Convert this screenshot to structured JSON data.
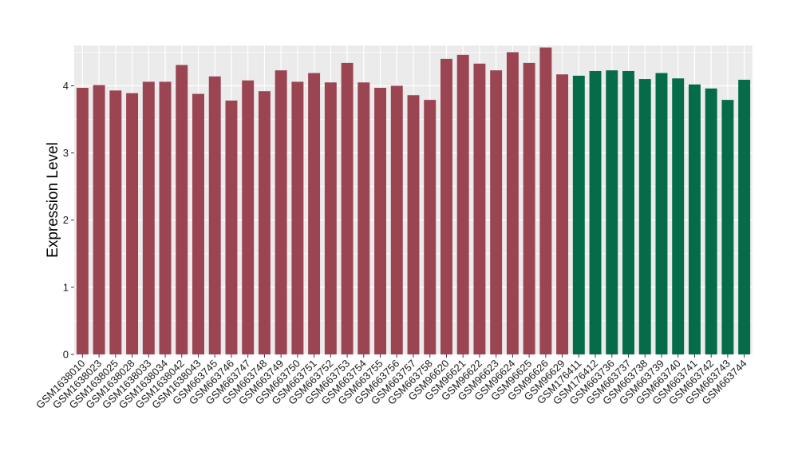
{
  "chart_data": {
    "type": "bar",
    "title": "",
    "xlabel": "",
    "ylabel": "Expression Level",
    "ylim": [
      0,
      4.6
    ],
    "yticks": [
      0,
      1,
      2,
      3,
      4
    ],
    "grid": true,
    "legend": "none",
    "colors": {
      "group1": "#9b4452",
      "group2": "#056b48",
      "panel_bg": "#ebebeb",
      "grid": "#ffffff"
    },
    "categories": [
      "GSM1638010",
      "GSM1638023",
      "GSM1638025",
      "GSM1638028",
      "GSM1638033",
      "GSM1638034",
      "GSM1638042",
      "GSM1638043",
      "GSM663745",
      "GSM663746",
      "GSM663747",
      "GSM663748",
      "GSM663749",
      "GSM663750",
      "GSM663751",
      "GSM663752",
      "GSM663753",
      "GSM663754",
      "GSM663755",
      "GSM663756",
      "GSM663757",
      "GSM663758",
      "GSM96620",
      "GSM96621",
      "GSM96622",
      "GSM96623",
      "GSM96624",
      "GSM96625",
      "GSM96626",
      "GSM96629",
      "GSM176411",
      "GSM176412",
      "GSM663736",
      "GSM663737",
      "GSM663738",
      "GSM663739",
      "GSM663740",
      "GSM663741",
      "GSM663742",
      "GSM663743",
      "GSM663744"
    ],
    "values": [
      3.97,
      4.01,
      3.93,
      3.89,
      4.06,
      4.06,
      4.31,
      3.88,
      4.14,
      3.78,
      4.08,
      3.92,
      4.23,
      4.06,
      4.19,
      4.05,
      4.34,
      4.05,
      3.97,
      4.0,
      3.86,
      3.79,
      4.4,
      4.46,
      4.33,
      4.23,
      4.5,
      4.34,
      4.57,
      4.17,
      4.15,
      4.22,
      4.23,
      4.22,
      4.1,
      4.19,
      4.11,
      4.02,
      3.96,
      3.79,
      4.09
    ],
    "groups": [
      1,
      1,
      1,
      1,
      1,
      1,
      1,
      1,
      1,
      1,
      1,
      1,
      1,
      1,
      1,
      1,
      1,
      1,
      1,
      1,
      1,
      1,
      1,
      1,
      1,
      1,
      1,
      1,
      1,
      1,
      2,
      2,
      2,
      2,
      2,
      2,
      2,
      2,
      2,
      2,
      2
    ]
  }
}
